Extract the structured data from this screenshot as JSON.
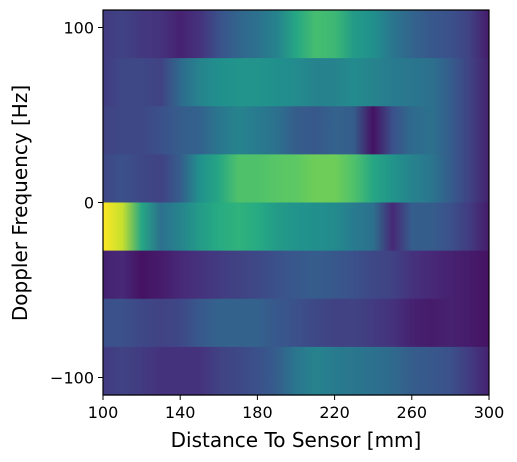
{
  "chart_data": {
    "type": "heatmap",
    "title": "",
    "xlabel": "Distance To Sensor [mm]",
    "ylabel": "Doppler Frequency [Hz]",
    "colormap": "viridis",
    "xlim": [
      100,
      300
    ],
    "ylim": [
      -110,
      110
    ],
    "xticks": [
      100,
      140,
      180,
      220,
      260,
      300
    ],
    "xtick_labels": [
      "100",
      "140",
      "180",
      "220",
      "260",
      "300"
    ],
    "yticks": [
      100,
      0,
      -100
    ],
    "ytick_labels": [
      "100",
      "0",
      "−100"
    ],
    "x_samples": [
      100,
      110,
      120,
      130,
      140,
      150,
      160,
      170,
      180,
      190,
      200,
      210,
      220,
      230,
      240,
      250,
      260,
      270,
      280,
      290,
      300
    ],
    "rows": [
      {
        "doppler_hz": 96.25,
        "intensity": [
          0.18,
          0.2,
          0.17,
          0.15,
          0.1,
          0.15,
          0.25,
          0.33,
          0.38,
          0.45,
          0.6,
          0.7,
          0.68,
          0.55,
          0.5,
          0.4,
          0.33,
          0.28,
          0.25,
          0.2,
          0.08
        ]
      },
      {
        "doppler_hz": 68.75,
        "intensity": [
          0.18,
          0.22,
          0.22,
          0.2,
          0.35,
          0.45,
          0.5,
          0.52,
          0.52,
          0.5,
          0.48,
          0.45,
          0.45,
          0.48,
          0.45,
          0.42,
          0.4,
          0.38,
          0.3,
          0.2,
          0.1
        ]
      },
      {
        "doppler_hz": 41.25,
        "intensity": [
          0.2,
          0.22,
          0.22,
          0.25,
          0.3,
          0.32,
          0.4,
          0.45,
          0.42,
          0.38,
          0.3,
          0.28,
          0.32,
          0.3,
          0.05,
          0.25,
          0.35,
          0.38,
          0.3,
          0.2,
          0.1
        ]
      },
      {
        "doppler_hz": 13.75,
        "intensity": [
          0.22,
          0.25,
          0.22,
          0.2,
          0.3,
          0.5,
          0.6,
          0.72,
          0.72,
          0.74,
          0.75,
          0.78,
          0.78,
          0.72,
          0.6,
          0.52,
          0.45,
          0.4,
          0.3,
          0.2,
          0.1
        ]
      },
      {
        "doppler_hz": -13.75,
        "intensity": [
          1.0,
          0.92,
          0.6,
          0.38,
          0.45,
          0.55,
          0.62,
          0.65,
          0.62,
          0.55,
          0.52,
          0.5,
          0.48,
          0.42,
          0.38,
          0.12,
          0.3,
          0.3,
          0.25,
          0.18,
          0.08
        ]
      },
      {
        "doppler_hz": -41.25,
        "intensity": [
          0.1,
          0.12,
          0.05,
          0.08,
          0.12,
          0.15,
          0.18,
          0.2,
          0.22,
          0.25,
          0.28,
          0.3,
          0.28,
          0.25,
          0.22,
          0.2,
          0.15,
          0.12,
          0.1,
          0.08,
          0.05
        ]
      },
      {
        "doppler_hz": -68.75,
        "intensity": [
          0.25,
          0.25,
          0.22,
          0.2,
          0.22,
          0.28,
          0.32,
          0.32,
          0.32,
          0.28,
          0.25,
          0.22,
          0.2,
          0.2,
          0.18,
          0.15,
          0.1,
          0.08,
          0.1,
          0.08,
          0.05
        ]
      },
      {
        "doppler_hz": -96.25,
        "intensity": [
          0.18,
          0.2,
          0.18,
          0.15,
          0.15,
          0.15,
          0.2,
          0.22,
          0.25,
          0.3,
          0.4,
          0.45,
          0.42,
          0.4,
          0.38,
          0.35,
          0.3,
          0.28,
          0.25,
          0.18,
          0.1
        ]
      }
    ],
    "colorbar": false,
    "grid": false,
    "legend": false
  }
}
